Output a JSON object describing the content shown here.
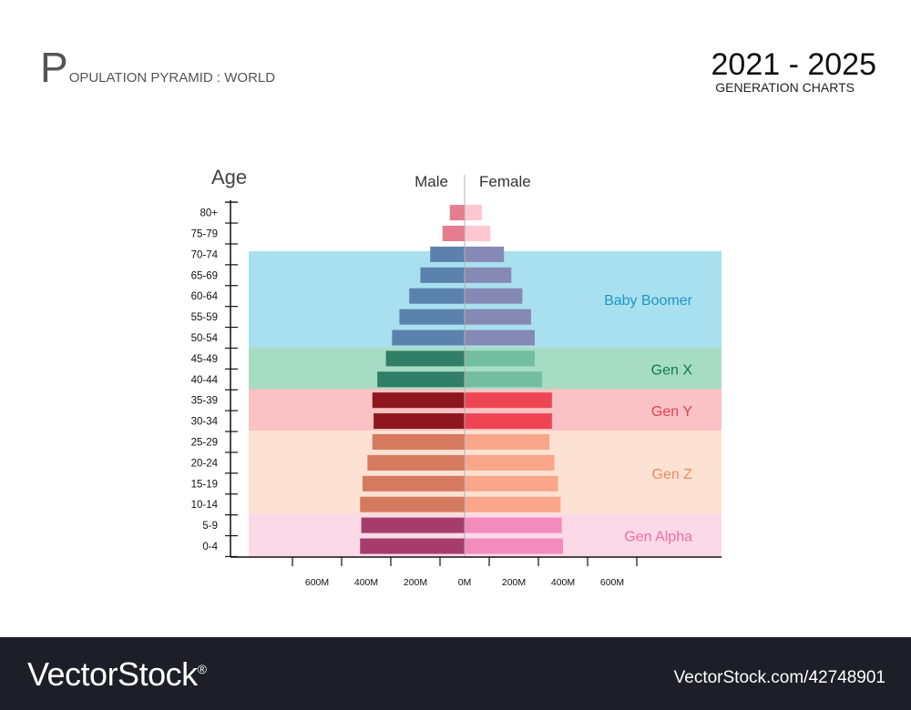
{
  "header": {
    "title_first_letter": "P",
    "title_rest": "OPULATION PYRAMID : WORLD",
    "years": "2021 - 2025",
    "subtitle": "GENERATION CHARTS"
  },
  "footer": {
    "brand": "VectorStock",
    "registered": "®",
    "stock_id": "VectorStock.com/42748901"
  },
  "colors": {
    "baby_boomer_band": "#a9e0ef",
    "gen_x_band": "#a7dcc4",
    "gen_y_band": "#fac2c4",
    "gen_z_band": "#fde1d2",
    "gen_alpha_band": "#fbd9e7"
  },
  "chart_data": {
    "type": "bar",
    "orientation": "horizontal-diverging",
    "axis_title": "Age",
    "categories": [
      "0-4",
      "5-9",
      "10-14",
      "15-19",
      "20-24",
      "25-29",
      "30-34",
      "35-39",
      "40-44",
      "45-49",
      "50-54",
      "55-59",
      "60-64",
      "65-69",
      "70-74",
      "75-79",
      "80+"
    ],
    "series": [
      {
        "name": "Male",
        "values": [
          425,
          420,
          425,
          415,
          395,
          375,
          370,
          375,
          355,
          320,
          295,
          265,
          225,
          180,
          140,
          90,
          60
        ],
        "colors": [
          "#a53c6b",
          "#a53c6b",
          "#d57a5f",
          "#d57a5f",
          "#d57a5f",
          "#d57a5f",
          "#8e161e",
          "#8e161e",
          "#307e65",
          "#307e65",
          "#5b82ad",
          "#5b82ad",
          "#5b82ad",
          "#5b82ad",
          "#5b82ad",
          "#e57d8f",
          "#e57d8f"
        ]
      },
      {
        "name": "Female",
        "values": [
          400,
          395,
          390,
          380,
          365,
          345,
          355,
          355,
          315,
          285,
          285,
          270,
          235,
          190,
          160,
          105,
          70
        ],
        "colors": [
          "#f38bbd",
          "#f38bbd",
          "#f9a68b",
          "#f9a68b",
          "#f9a68b",
          "#f9a68b",
          "#ee4554",
          "#ee4554",
          "#73bda2",
          "#73bda2",
          "#8789b5",
          "#8789b5",
          "#8789b5",
          "#8789b5",
          "#8789b5",
          "#ffc7d1",
          "#ffc7d1"
        ]
      }
    ],
    "x_tick_labels": [
      "600M",
      "400M",
      "200M",
      "0M",
      "200M",
      "400M",
      "600M"
    ],
    "x_tick_values": [
      -600,
      -400,
      -200,
      0,
      200,
      400,
      600
    ],
    "xlim": [
      -800,
      1050
    ],
    "generations": [
      {
        "name": "Baby Boomer",
        "from": "50-54",
        "to": "70-74",
        "label_color": "#1f96c4"
      },
      {
        "name": "Gen X",
        "from": "40-44",
        "to": "45-49",
        "label_color": "#0e7a4d"
      },
      {
        "name": "Gen Y",
        "from": "30-34",
        "to": "35-39",
        "label_color": "#e5404f"
      },
      {
        "name": "Gen Z",
        "from": "10-14",
        "to": "25-29",
        "label_color": "#ef8a66"
      },
      {
        "name": "Gen Alpha",
        "from": "0-4",
        "to": "5-9",
        "label_color": "#ee6fa4"
      }
    ]
  }
}
